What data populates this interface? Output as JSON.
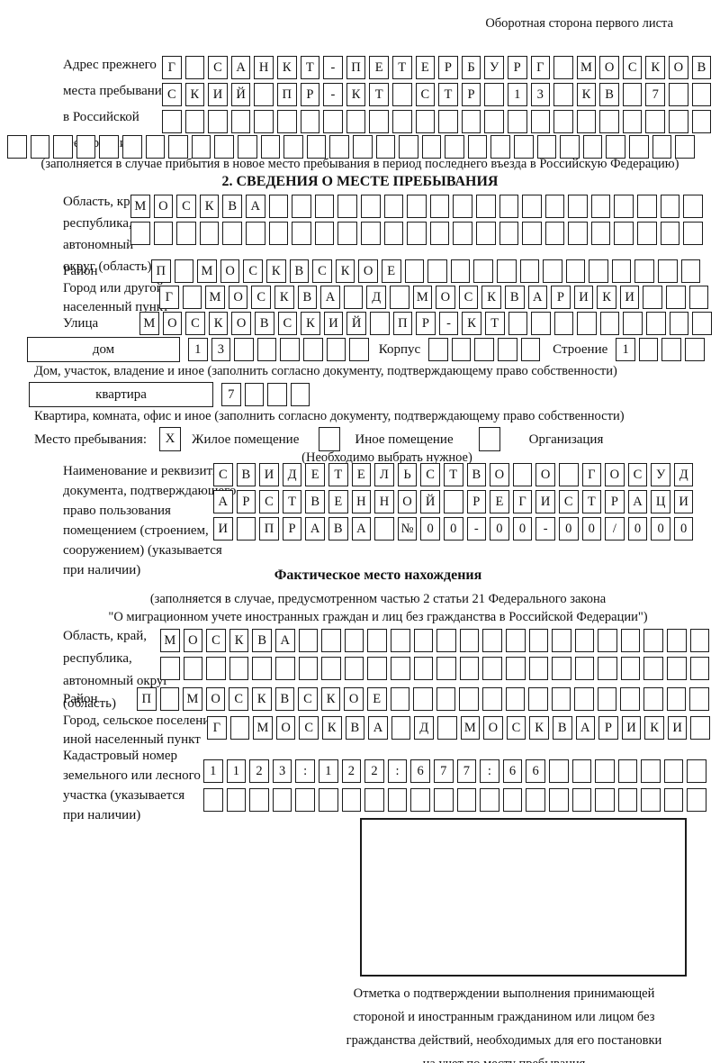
{
  "header": {
    "back_note": "Оборотная сторона первого листа"
  },
  "prev_address": {
    "label": "Адрес прежнего\nместа пребывания\nв Российской\nФедерации",
    "row1": "Г САНКТ-ПЕТЕРБУРГ МОСКОВ",
    "row2": "СКИЙ ПР-КТ СТР 13 КВ 7  ",
    "row3": "                        ",
    "row4": "                              ",
    "note": "(заполняется в случае прибытия в новое место пребывания в период последнего въезда в Российскую Федерацию)"
  },
  "section2": {
    "title": "2. СВЕДЕНИЯ О МЕСТЕ ПРЕБЫВАНИЯ",
    "oblast_label": "Область, край,\nреспублика,\nавтономный\nокруг (область)",
    "oblast_row1": "МОСКВА                   ",
    "oblast_row2": "                         ",
    "raion_label": "Район",
    "raion_row": "П МОСКВСКОЕ             ",
    "gorod_label": "Город или другой\nнаселенный пункт",
    "gorod_row": "Г МОСКВА Д МОСКВАРИКИ   ",
    "ulitsa_label": "Улица",
    "ulitsa_row": "МОСКОВСКИЙ ПР-КТ         ",
    "dom": {
      "box_label": "дом",
      "cells": "13      ",
      "korpus_label": "Корпус",
      "korpus_cells": "     ",
      "stroenie_label": "Строение",
      "stroenie_cells": "1   ",
      "note": "Дом, участок, владение и иное (заполнить согласно документу, подтверждающему право собственности)"
    },
    "kvartira": {
      "box_label": "квартира",
      "cells": "7   ",
      "note": "Квартира, комната, офис и иное (заполнить согласно документу, подтверждающему право собственности)"
    },
    "residence": {
      "label": "Место пребывания:",
      "checked_mark": "X",
      "option1": "Жилое помещение",
      "option2": "Иное помещение",
      "option3": "Организация",
      "note": "(Необходимо выбрать нужное)"
    },
    "doc_label": "Наименование и реквизиты\nдокумента, подтверждающего\nправо пользования\nпомещением (строением,\nсооружением) (указывается\nпри наличии)",
    "doc_row1": "СВИДЕТЕЛЬСТВО О ГОСУД",
    "doc_row2": "АРСТВЕННОЙ РЕГИСТРАЦИ",
    "doc_row3": "И ПРАВА №00-00-00/000"
  },
  "actual_location": {
    "title": "Фактическое место нахождения",
    "note": "(заполняется в случае, предусмотренном частью 2 статьи 21 Федерального закона\n\"О миграционном учете иностранных граждан и лиц без гражданства в Российской Федерации\")",
    "oblast_label": "Область, край,\nреспублика,\nавтономный округ\n(область)",
    "oblast_row1": "МОСКВА                  ",
    "oblast_row2": "                        ",
    "raion_label": "Район",
    "raion_row": "П МОСКВСКОЕ              ",
    "gorod_label": "Город, сельское поселение,\nиной населенный пункт",
    "gorod_row": "Г МОСКВА Д МОСКВАРИКИ ",
    "kadastr_label": "Кадастровый номер\nземельного или лесного\nучастка (указывается\nпри наличии)",
    "kadastr_row1": "1123:122:677:66       ",
    "kadastr_row2": "                      "
  },
  "stamp": {
    "caption": "Отметка о подтверждении выполнения принимающей\nстороной и иностранным гражданином или лицом без\nгражданства действий, необходимых для его постановки\nна учет по месту пребывания"
  }
}
